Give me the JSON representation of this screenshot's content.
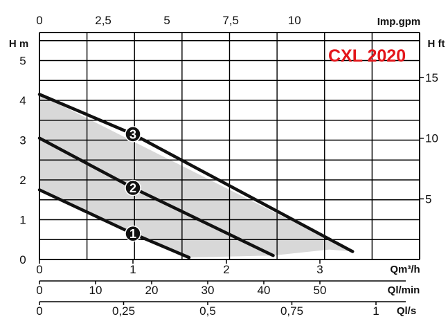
{
  "chart_data": {
    "type": "line",
    "title": "CXL 2020",
    "xlabel": "Qm³/h",
    "ylabel": "H m",
    "xlim": [
      0,
      4
    ],
    "ylim": [
      0,
      5.5
    ],
    "grid": true,
    "series": [
      {
        "name": "1",
        "x": [
          0,
          1,
          1.6
        ],
        "y": [
          1.75,
          0.65,
          0.05
        ]
      },
      {
        "name": "2",
        "x": [
          0,
          1,
          2.5
        ],
        "y": [
          3.05,
          1.8,
          0.1
        ]
      },
      {
        "name": "3",
        "x": [
          0,
          1,
          3.35
        ],
        "y": [
          4.15,
          3.15,
          0.2
        ]
      }
    ],
    "operating_area": {
      "upper": {
        "x": [
          0,
          3.35
        ],
        "y": [
          4.15,
          0.2
        ]
      },
      "lower": {
        "x": [
          0,
          1.6,
          2.5,
          3.1,
          3.35
        ],
        "y": [
          1.75,
          0.05,
          0.1,
          0.25,
          0.2
        ]
      }
    },
    "axes": {
      "x_main": {
        "label": "Qm³/h",
        "ticks": [
          0,
          1,
          2,
          3
        ],
        "tick_labels": [
          "0",
          "1",
          "2",
          "3"
        ]
      },
      "x_lmin": {
        "label": "Ql/min",
        "ticks": [
          0,
          10,
          20,
          30,
          40,
          50
        ],
        "tick_labels": [
          "0",
          "10",
          "20",
          "30",
          "40",
          "50"
        ]
      },
      "x_ls": {
        "label": "Ql/s",
        "ticks": [
          0,
          0.25,
          0.5,
          0.75,
          1
        ],
        "tick_labels": [
          "0",
          "0,25",
          "0,5",
          "0,75",
          "1"
        ]
      },
      "x_top": {
        "label": "Imp.gpm",
        "ticks": [
          0,
          2.5,
          5,
          7.5,
          10
        ],
        "tick_labels": [
          "0",
          "2,5",
          "5",
          "7,5",
          "10"
        ]
      },
      "y_left": {
        "label": "H m",
        "ticks": [
          0,
          1,
          2,
          3,
          4,
          5
        ],
        "tick_labels": [
          "0",
          "1",
          "2",
          "3",
          "4",
          "5"
        ]
      },
      "y_right": {
        "label": "H ft",
        "ticks": [
          5,
          10,
          15
        ],
        "tick_labels": [
          "5",
          "10",
          "15"
        ]
      }
    }
  },
  "colors": {
    "curve": "#111111",
    "area": "#d8d8d8",
    "grid": "#000000",
    "model": "#e3161b"
  }
}
